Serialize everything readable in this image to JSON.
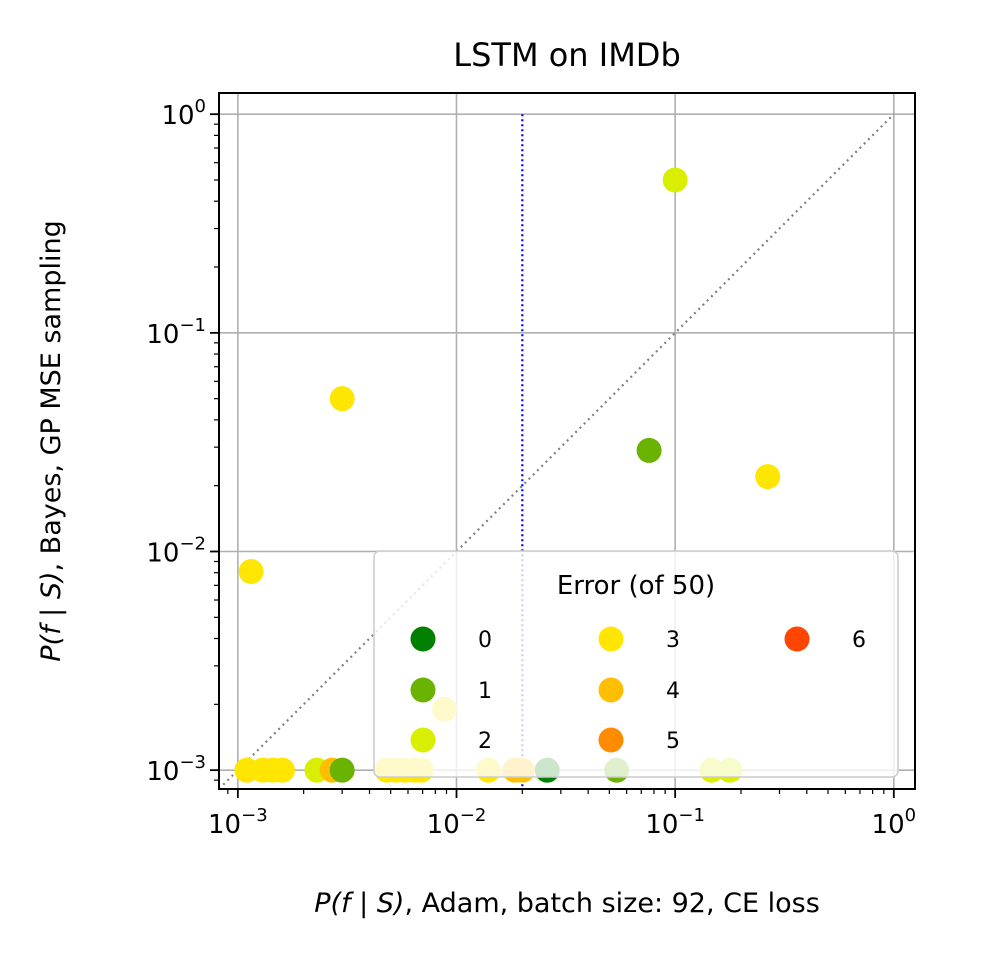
{
  "chart_data": {
    "type": "scatter",
    "title": "LSTM on IMDb",
    "xlabel": {
      "lead": "P(f | S)",
      "rest": ", Adam, batch size: 92, CE loss"
    },
    "ylabel": {
      "lead": "P(f | S)",
      "rest": ", Bayes, GP MSE sampling"
    },
    "xscale": "log",
    "yscale": "log",
    "xlim": [
      0.00082,
      1.25
    ],
    "ylim": [
      0.00082,
      1.25
    ],
    "grid": true,
    "x_ticks": [
      {
        "value": 0.001,
        "base": "10",
        "exp": "−3"
      },
      {
        "value": 0.01,
        "base": "10",
        "exp": "−2"
      },
      {
        "value": 0.1,
        "base": "10",
        "exp": "−1"
      },
      {
        "value": 1,
        "base": "10",
        "exp": "0"
      }
    ],
    "y_ticks": [
      {
        "value": 0.001,
        "base": "10",
        "exp": "−3"
      },
      {
        "value": 0.01,
        "base": "10",
        "exp": "−2"
      },
      {
        "value": 0.1,
        "base": "10",
        "exp": "−1"
      },
      {
        "value": 1,
        "base": "10",
        "exp": "0"
      }
    ],
    "reference_lines": [
      {
        "kind": "diagonal",
        "style": "dotted",
        "color": "#808080"
      },
      {
        "kind": "vertical",
        "x": 0.02,
        "style": "dotted",
        "color": "#0000ff"
      }
    ],
    "legend": {
      "title": "Error (of 50)",
      "position": "lower-right",
      "columns": 3,
      "entries": [
        {
          "label": "0",
          "color": "#008000"
        },
        {
          "label": "1",
          "color": "#6ab300"
        },
        {
          "label": "2",
          "color": "#d9ee00"
        },
        {
          "label": "3",
          "color": "#ffe600"
        },
        {
          "label": "4",
          "color": "#ffbf00"
        },
        {
          "label": "5",
          "color": "#ff8c00"
        },
        {
          "label": "6",
          "color": "#ff4500"
        }
      ]
    },
    "points": [
      {
        "x": 0.1,
        "y": 0.5,
        "error": 2
      },
      {
        "x": 0.003,
        "y": 0.05,
        "error": 3
      },
      {
        "x": 0.076,
        "y": 0.029,
        "error": 1
      },
      {
        "x": 0.265,
        "y": 0.022,
        "error": 3
      },
      {
        "x": 0.00115,
        "y": 0.0081,
        "error": 3
      },
      {
        "x": 0.0088,
        "y": 0.0019,
        "error": 3
      },
      {
        "x": 0.0011,
        "y": 0.001,
        "error": 3
      },
      {
        "x": 0.0013,
        "y": 0.001,
        "error": 3
      },
      {
        "x": 0.00145,
        "y": 0.001,
        "error": 3
      },
      {
        "x": 0.0016,
        "y": 0.001,
        "error": 3
      },
      {
        "x": 0.0023,
        "y": 0.001,
        "error": 2
      },
      {
        "x": 0.0027,
        "y": 0.001,
        "error": 4
      },
      {
        "x": 0.003,
        "y": 0.001,
        "error": 1
      },
      {
        "x": 0.0048,
        "y": 0.001,
        "error": 3
      },
      {
        "x": 0.0053,
        "y": 0.001,
        "error": 3
      },
      {
        "x": 0.0058,
        "y": 0.001,
        "error": 3
      },
      {
        "x": 0.0064,
        "y": 0.001,
        "error": 3
      },
      {
        "x": 0.0069,
        "y": 0.001,
        "error": 3
      },
      {
        "x": 0.014,
        "y": 0.001,
        "error": 3
      },
      {
        "x": 0.0185,
        "y": 0.001,
        "error": 4
      },
      {
        "x": 0.02,
        "y": 0.001,
        "error": 4
      },
      {
        "x": 0.026,
        "y": 0.001,
        "error": 0
      },
      {
        "x": 0.054,
        "y": 0.001,
        "error": 1
      },
      {
        "x": 0.147,
        "y": 0.001,
        "error": 2
      },
      {
        "x": 0.178,
        "y": 0.001,
        "error": 2
      }
    ]
  }
}
